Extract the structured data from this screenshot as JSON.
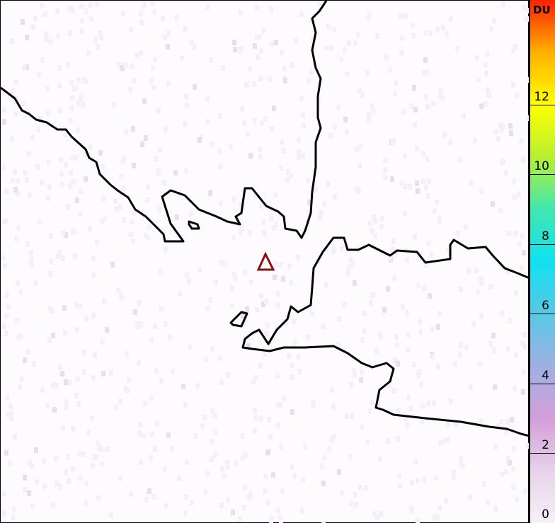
{
  "map": {
    "volcano_marker": {
      "icon": "triangle-icon",
      "color": "#8b1010"
    },
    "coastline_color": "#000000"
  },
  "colorbar": {
    "unit": "DU",
    "ticks": [
      "0",
      "2",
      "4",
      "6",
      "8",
      "10",
      "12"
    ],
    "range": [
      0,
      15
    ],
    "colors": [
      "#f6f0f8",
      "#e6d2ea",
      "#d49ed9",
      "#9fb0e2",
      "#58c8e6",
      "#10e0f0",
      "#40e8b0",
      "#b8f030",
      "#ffff00",
      "#ffb000",
      "#ff2000"
    ]
  }
}
